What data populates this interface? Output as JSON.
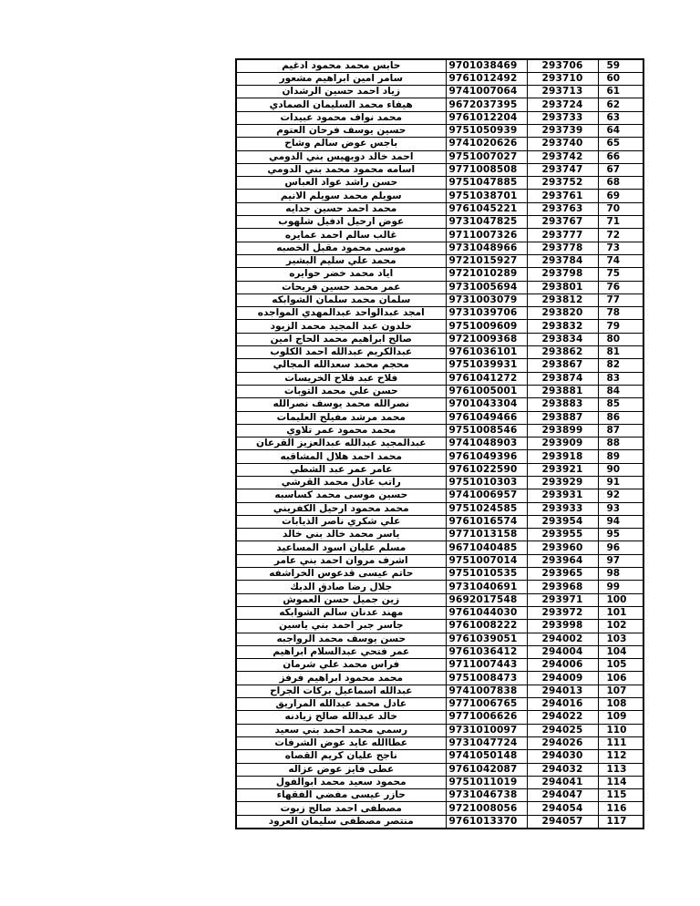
{
  "page": {
    "background_color": "#ffffff",
    "text_color": "#000000",
    "border_color": "#000000"
  },
  "table": {
    "columns": [
      "name",
      "national_id",
      "serial",
      "seq"
    ],
    "rows": [
      [
        "حابس محمد محمود ادغيم",
        "9701038469",
        "293706",
        "59"
      ],
      [
        "سامر امين ابراهيم مشعور",
        "9761012492",
        "293710",
        "60"
      ],
      [
        "زياد احمد حسين الرشدان",
        "9741007064",
        "293713",
        "61"
      ],
      [
        "هيفاء محمد السليمان الصمادي",
        "9672037395",
        "293724",
        "62"
      ],
      [
        "محمد نواف محمود عبيدات",
        "9761012204",
        "293733",
        "63"
      ],
      [
        "حسين يوسف فرحان العتوم",
        "9751050939",
        "293739",
        "64"
      ],
      [
        "باجس عوض سالم وشاح",
        "9741020626",
        "293740",
        "65"
      ],
      [
        "احمد خالد دوبهيس بني الدومي",
        "9751007027",
        "293742",
        "66"
      ],
      [
        "اسامه محمود محمد بني الدومي",
        "9771008508",
        "293747",
        "67"
      ],
      [
        "حسن راشد عواد العباس",
        "9751047885",
        "293752",
        "68"
      ],
      [
        "سويلم محمد سويلم الانيم",
        "9751038701",
        "293761",
        "69"
      ],
      [
        "محمد احمد حسين جدايه",
        "9761045221",
        "293763",
        "70"
      ],
      [
        "عوض ارحيل ادفيل شلهوب",
        "9731047825",
        "293767",
        "71"
      ],
      [
        "غالب سالم احمد عمايره",
        "9711007326",
        "293777",
        "72"
      ],
      [
        "موسى محمود مقبل الخصبه",
        "9731048966",
        "293778",
        "73"
      ],
      [
        "محمد علي سليم البشير",
        "9721015927",
        "293784",
        "74"
      ],
      [
        "اياد محمد خضر حوايره",
        "9721010289",
        "293798",
        "75"
      ],
      [
        "عمر محمد حسين فريحات",
        "9731005694",
        "293801",
        "76"
      ],
      [
        "سلمان محمد سلمان الشوابكه",
        "9731003079",
        "293812",
        "77"
      ],
      [
        "امجد عبدالواحد عبدالمهدي المواجده",
        "9731039706",
        "293820",
        "78"
      ],
      [
        "خلدون عبد المجيد محمد الزيود",
        "9751009609",
        "293832",
        "79"
      ],
      [
        "صالح ابراهيم محمد الحاج امين",
        "9721009368",
        "293834",
        "80"
      ],
      [
        "عبدالكريم عبدالله احمد الكلوب",
        "9761036101",
        "293862",
        "81"
      ],
      [
        "محجم محمد سعدالله المجالي",
        "9751039931",
        "293867",
        "82"
      ],
      [
        "فلاح عبد فلاح الخريسات",
        "9761041272",
        "293874",
        "83"
      ],
      [
        "حسن علي محمد التوبات",
        "9761005001",
        "293881",
        "84"
      ],
      [
        "نصرالله محمد يوسف نصرالله",
        "9701043304",
        "293883",
        "85"
      ],
      [
        "محمد مرشد مفيلح العليمات",
        "9761049466",
        "293887",
        "86"
      ],
      [
        "محمد محمود عمر تلاوي",
        "9751008546",
        "293899",
        "87"
      ],
      [
        "عبدالمجيد عبدالله عبدالعزيز القرعان",
        "9741048903",
        "293909",
        "88"
      ],
      [
        "محمد احمد هلال المشاقبه",
        "9761049396",
        "293918",
        "89"
      ],
      [
        "عامر عمر عبد الشطي",
        "9761022590",
        "293921",
        "90"
      ],
      [
        "راتب عادل محمد القرشي",
        "9751010303",
        "293929",
        "91"
      ],
      [
        "حسين موسى محمد كساسبه",
        "9741006957",
        "293931",
        "92"
      ],
      [
        "محمد محمود ارحيل الكفريني",
        "9751024585",
        "293933",
        "93"
      ],
      [
        "علي شكري ناصر الذيابات",
        "9761016574",
        "293954",
        "94"
      ],
      [
        "ياسر محمد خالد بني خالد",
        "9771013158",
        "293955",
        "95"
      ],
      [
        "مسلم عليان اسود المساعيد",
        "9671040485",
        "293960",
        "96"
      ],
      [
        "اشرف مروان احمد بني عامر",
        "9751007014",
        "293964",
        "97"
      ],
      [
        "حاتم عيسى قدعوس الخراشفه",
        "9751010535",
        "293965",
        "98"
      ],
      [
        "جلال رضا صادق الدبك",
        "9731040691",
        "293968",
        "99"
      ],
      [
        "زين جميل حسن العموش",
        "9692017548",
        "293971",
        "100"
      ],
      [
        "مهند عدنان سالم الشوابكه",
        "9761044030",
        "293972",
        "101"
      ],
      [
        "جاسر جبر احمد بني ياسين",
        "9761008222",
        "293998",
        "102"
      ],
      [
        "حسن يوسف محمد الرواجبه",
        "9761039051",
        "294002",
        "103"
      ],
      [
        "عمر فتحي عبدالسلام ابراهيم",
        "9761036412",
        "294004",
        "104"
      ],
      [
        "فراس محمد علي شرمان",
        "9711007443",
        "294006",
        "105"
      ],
      [
        "محمد محمود ابراهيم فرفز",
        "9751008473",
        "294009",
        "106"
      ],
      [
        "عبدالله اسماعيل بركات الجراح",
        "9741007838",
        "294013",
        "107"
      ],
      [
        "عادل محمد عبدالله المراريق",
        "9771006765",
        "294016",
        "108"
      ],
      [
        "خالد عبدالله صالح زيادنه",
        "9771006626",
        "294022",
        "109"
      ],
      [
        "رسمي محمد احمد بني سعيد",
        "9731010097",
        "294025",
        "110"
      ],
      [
        "عطاالله عايد عوض الشرفات",
        "9731047724",
        "294026",
        "111"
      ],
      [
        "ناجح عليان كريم القصاه",
        "9741050148",
        "294030",
        "112"
      ],
      [
        "عطى فايز عوض عزاله",
        "9761042087",
        "294032",
        "113"
      ],
      [
        "محمود سعيد محمد ابوالفول",
        "9751011019",
        "294041",
        "114"
      ],
      [
        "حازر عيسى مفضي الفقهاء",
        "9731046738",
        "294047",
        "115"
      ],
      [
        "مصطفى احمد صالح زبوت",
        "9721008056",
        "294054",
        "116"
      ],
      [
        "منتصر مصطفى سليمان العرود",
        "9761013370",
        "294057",
        "117"
      ]
    ]
  }
}
